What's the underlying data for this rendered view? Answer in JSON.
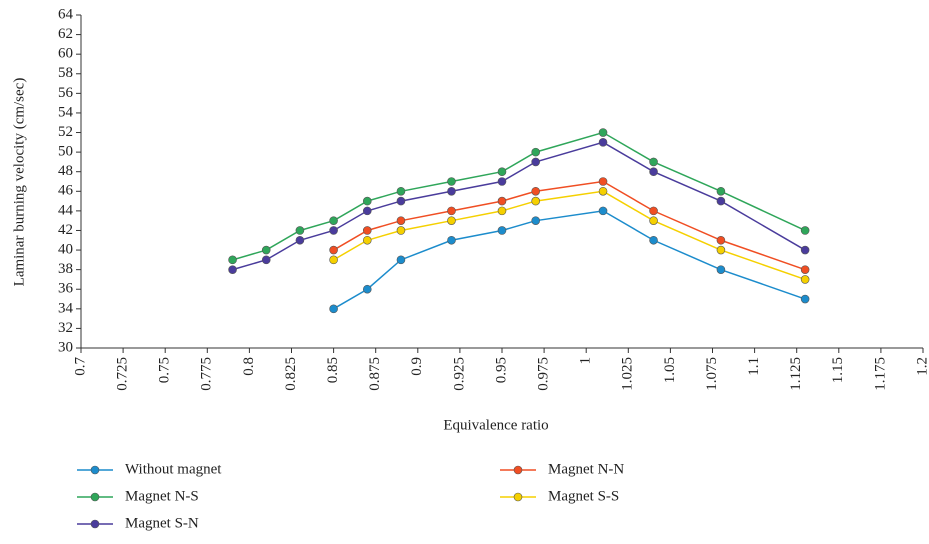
{
  "chart_data": {
    "type": "line",
    "x_label": "Equivalence ratio",
    "y_label": "Laminar burning velocity (cm/sec)",
    "xlim": [
      0.7,
      1.2
    ],
    "xticks": [
      0.7,
      0.725,
      0.75,
      0.775,
      0.8,
      0.825,
      0.85,
      0.875,
      0.9,
      0.925,
      0.95,
      0.975,
      1,
      1.025,
      1.05,
      1.075,
      1.1,
      1.125,
      1.15,
      1.175,
      1.2
    ],
    "ylim": [
      30,
      64
    ],
    "yticks": [
      30,
      32,
      34,
      36,
      38,
      40,
      42,
      44,
      46,
      48,
      50,
      52,
      54,
      56,
      58,
      60,
      62,
      64
    ],
    "series": [
      {
        "name": "Without magnet",
        "color": "#1c8ccc",
        "x": [
          0.85,
          0.87,
          0.89,
          0.92,
          0.95,
          0.97,
          1.01,
          1.04,
          1.08,
          1.13
        ],
        "values": [
          34,
          36,
          39,
          41,
          42,
          43,
          44,
          41,
          38,
          35
        ]
      },
      {
        "name": "Magnet N-S",
        "color": "#2fa65a",
        "x": [
          0.79,
          0.81,
          0.83,
          0.85,
          0.87,
          0.89,
          0.92,
          0.95,
          0.97,
          1.01,
          1.04,
          1.08,
          1.13
        ],
        "values": [
          39,
          40,
          42,
          43,
          45,
          46,
          47,
          48,
          50,
          52,
          49,
          46,
          42
        ]
      },
      {
        "name": "Magnet S-N",
        "color": "#4a3c9c",
        "x": [
          0.79,
          0.81,
          0.83,
          0.85,
          0.87,
          0.89,
          0.92,
          0.95,
          0.97,
          1.01,
          1.04,
          1.08,
          1.13
        ],
        "values": [
          38,
          39,
          41,
          42,
          44,
          45,
          46,
          47,
          49,
          51,
          48,
          45,
          40
        ]
      },
      {
        "name": "Magnet N-N",
        "color": "#f04e23",
        "x": [
          0.85,
          0.87,
          0.89,
          0.92,
          0.95,
          0.97,
          1.01,
          1.04,
          1.08,
          1.13
        ],
        "values": [
          40,
          42,
          43,
          44,
          45,
          46,
          47,
          44,
          41,
          38
        ]
      },
      {
        "name": "Magnet S-S",
        "color": "#f5d000",
        "x": [
          0.85,
          0.87,
          0.89,
          0.92,
          0.95,
          0.97,
          1.01,
          1.04,
          1.08,
          1.13
        ],
        "values": [
          39,
          41,
          42,
          43,
          44,
          45,
          46,
          43,
          40,
          37
        ]
      }
    ]
  }
}
